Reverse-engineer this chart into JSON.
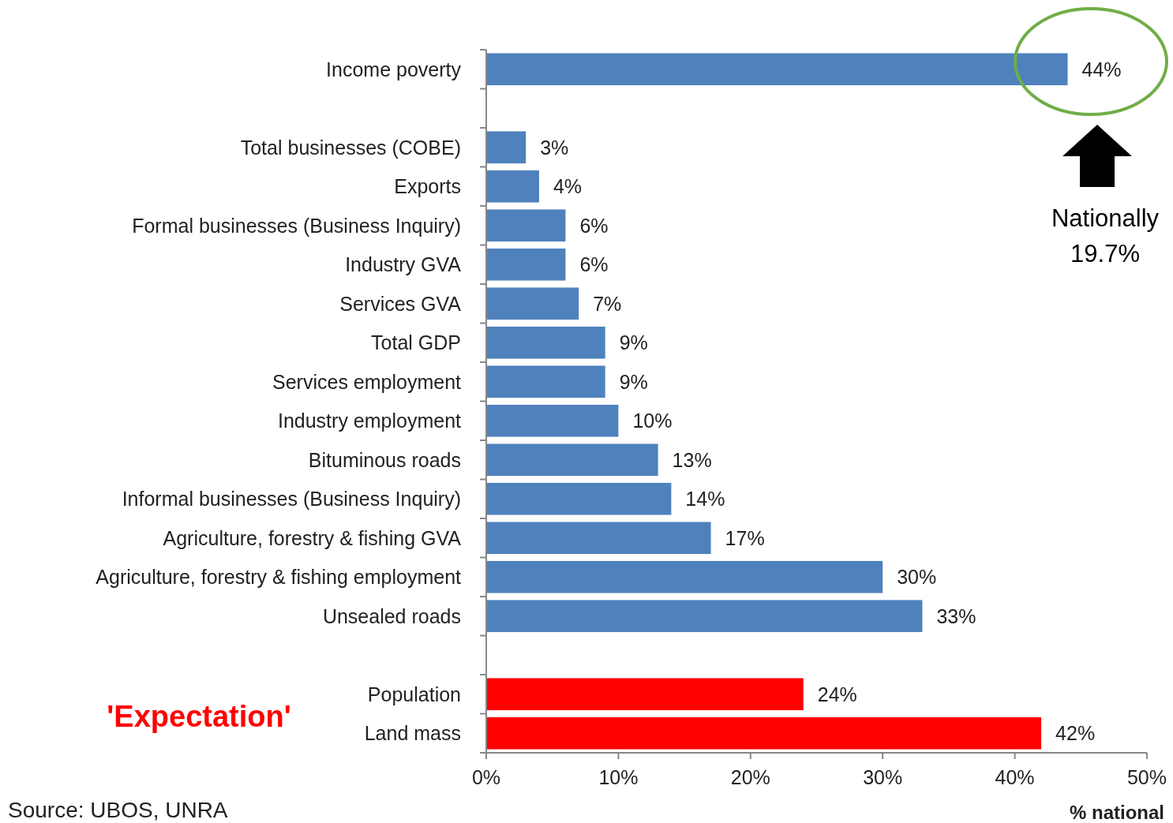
{
  "chart_data": {
    "type": "bar",
    "orientation": "horizontal",
    "xlabel": "% national",
    "categories": [
      "Income poverty",
      null,
      "Total businesses (COBE)",
      "Exports",
      "Formal businesses (Business Inquiry)",
      "Industry GVA",
      "Services GVA",
      "Total GDP",
      "Services employment",
      "Industry employment",
      "Bituminous roads",
      "Informal businesses (Business Inquiry)",
      "Agriculture, forestry & fishing GVA",
      "Agriculture, forestry & fishing employment",
      "Unsealed roads",
      null,
      "Population",
      "Land mass"
    ],
    "values": [
      44,
      null,
      3,
      4,
      6,
      6,
      7,
      9,
      9,
      10,
      13,
      14,
      17,
      30,
      33,
      null,
      24,
      42
    ],
    "value_labels": [
      "44%",
      null,
      "3%",
      "4%",
      "6%",
      "6%",
      "7%",
      "9%",
      "9%",
      "10%",
      "13%",
      "14%",
      "17%",
      "30%",
      "33%",
      null,
      "24%",
      "42%"
    ],
    "colors": [
      "#4f81bd",
      null,
      "#4f81bd",
      "#4f81bd",
      "#4f81bd",
      "#4f81bd",
      "#4f81bd",
      "#4f81bd",
      "#4f81bd",
      "#4f81bd",
      "#4f81bd",
      "#4f81bd",
      "#4f81bd",
      "#4f81bd",
      "#4f81bd",
      null,
      "#ff0000",
      "#ff0000"
    ],
    "xlim": [
      0,
      50
    ],
    "xticks": [
      {
        "value": 0,
        "label": "0%"
      },
      {
        "value": 10,
        "label": "10%"
      },
      {
        "value": 20,
        "label": "20%"
      },
      {
        "value": 30,
        "label": "30%"
      },
      {
        "value": 40,
        "label": "40%"
      },
      {
        "value": 50,
        "label": "50%"
      }
    ],
    "annotations": [
      "'Expectation'",
      "Nationally\n19.7%",
      "Source: UBOS, UNRA"
    ]
  }
}
